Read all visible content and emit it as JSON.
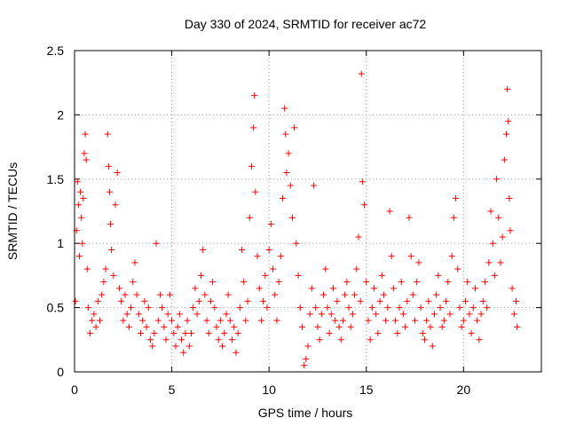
{
  "chart_data": {
    "type": "scatter",
    "title": "Day 330 of 2024, SRMTID for receiver ac72",
    "xlabel": "GPS time / hours",
    "ylabel": "SRMTID / TECUs",
    "xlim": [
      0,
      24
    ],
    "ylim": [
      0,
      2.5
    ],
    "xticks": [
      0,
      5,
      10,
      15,
      20
    ],
    "yticks": [
      0,
      0.5,
      1,
      1.5,
      2,
      2.5
    ],
    "xtick_labels": [
      "0",
      "5",
      "10",
      "15",
      "20"
    ],
    "ytick_labels": [
      "0",
      "0.5",
      "1",
      "1.5",
      "2",
      "2.5"
    ],
    "grid": true,
    "marker": "+",
    "color": "#ff0000",
    "series": [
      {
        "name": "SRMTID",
        "points": [
          [
            0.05,
            0.55
          ],
          [
            0.1,
            1.1
          ],
          [
            0.15,
            1.48
          ],
          [
            0.2,
            1.3
          ],
          [
            0.25,
            0.9
          ],
          [
            0.3,
            1.4
          ],
          [
            0.35,
            1.2
          ],
          [
            0.4,
            1.0
          ],
          [
            0.45,
            1.35
          ],
          [
            0.5,
            1.7
          ],
          [
            0.55,
            1.85
          ],
          [
            0.6,
            1.65
          ],
          [
            0.65,
            0.8
          ],
          [
            0.7,
            0.5
          ],
          [
            0.8,
            0.3
          ],
          [
            0.9,
            0.4
          ],
          [
            1.0,
            0.45
          ],
          [
            1.1,
            0.35
          ],
          [
            1.2,
            0.55
          ],
          [
            1.3,
            0.4
          ],
          [
            1.4,
            0.6
          ],
          [
            1.5,
            0.7
          ],
          [
            1.6,
            0.8
          ],
          [
            1.7,
            1.85
          ],
          [
            1.75,
            1.6
          ],
          [
            1.8,
            1.4
          ],
          [
            1.85,
            1.15
          ],
          [
            1.9,
            0.95
          ],
          [
            2.0,
            0.75
          ],
          [
            2.1,
            1.3
          ],
          [
            2.2,
            1.55
          ],
          [
            2.3,
            0.65
          ],
          [
            2.4,
            0.55
          ],
          [
            2.5,
            0.4
          ],
          [
            2.6,
            0.6
          ],
          [
            2.7,
            0.45
          ],
          [
            2.8,
            0.35
          ],
          [
            2.9,
            0.5
          ],
          [
            3.0,
            0.7
          ],
          [
            3.1,
            0.85
          ],
          [
            3.2,
            0.6
          ],
          [
            3.3,
            0.45
          ],
          [
            3.4,
            0.3
          ],
          [
            3.5,
            0.4
          ],
          [
            3.6,
            0.55
          ],
          [
            3.7,
            0.35
          ],
          [
            3.8,
            0.5
          ],
          [
            3.9,
            0.25
          ],
          [
            4.0,
            0.2
          ],
          [
            4.1,
            0.3
          ],
          [
            4.2,
            1.0
          ],
          [
            4.3,
            0.4
          ],
          [
            4.4,
            0.6
          ],
          [
            4.5,
            0.5
          ],
          [
            4.6,
            0.35
          ],
          [
            4.7,
            0.25
          ],
          [
            4.8,
            0.45
          ],
          [
            4.9,
            0.6
          ],
          [
            5.0,
            0.4
          ],
          [
            5.1,
            0.3
          ],
          [
            5.2,
            0.2
          ],
          [
            5.3,
            0.35
          ],
          [
            5.4,
            0.45
          ],
          [
            5.5,
            0.25
          ],
          [
            5.6,
            0.15
          ],
          [
            5.7,
            0.3
          ],
          [
            5.8,
            0.4
          ],
          [
            5.9,
            0.2
          ],
          [
            6.0,
            0.3
          ],
          [
            6.1,
            0.5
          ],
          [
            6.2,
            0.65
          ],
          [
            6.3,
            0.45
          ],
          [
            6.4,
            0.55
          ],
          [
            6.5,
            0.75
          ],
          [
            6.6,
            0.95
          ],
          [
            6.7,
            0.6
          ],
          [
            6.8,
            0.4
          ],
          [
            6.9,
            0.3
          ],
          [
            7.0,
            0.55
          ],
          [
            7.1,
            0.7
          ],
          [
            7.2,
            0.5
          ],
          [
            7.3,
            0.35
          ],
          [
            7.4,
            0.25
          ],
          [
            7.5,
            0.4
          ],
          [
            7.6,
            0.2
          ],
          [
            7.7,
            0.3
          ],
          [
            7.8,
            0.45
          ],
          [
            7.9,
            0.6
          ],
          [
            8.0,
            0.4
          ],
          [
            8.1,
            0.25
          ],
          [
            8.2,
            0.35
          ],
          [
            8.3,
            0.15
          ],
          [
            8.4,
            0.3
          ],
          [
            8.5,
            0.5
          ],
          [
            8.6,
            0.95
          ],
          [
            8.7,
            0.7
          ],
          [
            8.8,
            0.4
          ],
          [
            8.9,
            0.55
          ],
          [
            9.0,
            1.2
          ],
          [
            9.1,
            1.6
          ],
          [
            9.2,
            1.9
          ],
          [
            9.25,
            2.15
          ],
          [
            9.3,
            1.4
          ],
          [
            9.4,
            0.9
          ],
          [
            9.5,
            0.65
          ],
          [
            9.6,
            0.4
          ],
          [
            9.7,
            0.55
          ],
          [
            9.8,
            0.75
          ],
          [
            9.9,
            0.5
          ],
          [
            10.0,
            0.95
          ],
          [
            10.1,
            1.15
          ],
          [
            10.2,
            0.8
          ],
          [
            10.3,
            0.6
          ],
          [
            10.4,
            0.4
          ],
          [
            10.5,
            0.7
          ],
          [
            10.6,
            0.9
          ],
          [
            10.7,
            1.35
          ],
          [
            10.8,
            2.05
          ],
          [
            10.85,
            1.85
          ],
          [
            10.9,
            1.55
          ],
          [
            11.0,
            1.7
          ],
          [
            11.1,
            1.45
          ],
          [
            11.2,
            1.2
          ],
          [
            11.3,
            1.9
          ],
          [
            11.4,
            1.0
          ],
          [
            11.5,
            0.75
          ],
          [
            11.6,
            0.5
          ],
          [
            11.7,
            0.35
          ],
          [
            11.8,
            0.05
          ],
          [
            11.9,
            0.1
          ],
          [
            12.0,
            0.2
          ],
          [
            12.1,
            0.45
          ],
          [
            12.2,
            0.65
          ],
          [
            12.3,
            1.45
          ],
          [
            12.4,
            0.5
          ],
          [
            12.5,
            0.35
          ],
          [
            12.6,
            0.25
          ],
          [
            12.7,
            0.45
          ],
          [
            12.8,
            0.6
          ],
          [
            12.9,
            0.8
          ],
          [
            13.0,
            0.5
          ],
          [
            13.1,
            0.3
          ],
          [
            13.2,
            0.45
          ],
          [
            13.3,
            0.65
          ],
          [
            13.4,
            0.4
          ],
          [
            13.5,
            0.55
          ],
          [
            13.6,
            0.35
          ],
          [
            13.7,
            0.25
          ],
          [
            13.8,
            0.4
          ],
          [
            13.9,
            0.6
          ],
          [
            14.0,
            0.7
          ],
          [
            14.1,
            0.5
          ],
          [
            14.2,
            0.35
          ],
          [
            14.3,
            0.45
          ],
          [
            14.4,
            0.6
          ],
          [
            14.5,
            0.8
          ],
          [
            14.6,
            1.05
          ],
          [
            14.7,
            0.55
          ],
          [
            14.75,
            2.32
          ],
          [
            14.8,
            1.48
          ],
          [
            14.9,
            1.3
          ],
          [
            15.0,
            0.7
          ],
          [
            15.1,
            0.4
          ],
          [
            15.2,
            0.25
          ],
          [
            15.3,
            0.5
          ],
          [
            15.4,
            0.65
          ],
          [
            15.5,
            0.45
          ],
          [
            15.6,
            0.3
          ],
          [
            15.7,
            0.55
          ],
          [
            15.8,
            0.75
          ],
          [
            15.9,
            0.6
          ],
          [
            16.0,
            0.4
          ],
          [
            16.1,
            0.5
          ],
          [
            16.2,
            1.25
          ],
          [
            16.3,
            0.9
          ],
          [
            16.4,
            0.65
          ],
          [
            16.5,
            0.4
          ],
          [
            16.6,
            0.3
          ],
          [
            16.7,
            0.5
          ],
          [
            16.8,
            0.7
          ],
          [
            16.9,
            0.45
          ],
          [
            17.0,
            0.35
          ],
          [
            17.1,
            0.55
          ],
          [
            17.2,
            1.2
          ],
          [
            17.3,
            0.9
          ],
          [
            17.4,
            0.6
          ],
          [
            17.5,
            0.4
          ],
          [
            17.6,
            0.7
          ],
          [
            17.7,
            0.85
          ],
          [
            17.8,
            0.5
          ],
          [
            17.9,
            0.3
          ],
          [
            18.0,
            0.25
          ],
          [
            18.1,
            0.4
          ],
          [
            18.2,
            0.55
          ],
          [
            18.3,
            0.35
          ],
          [
            18.4,
            0.2
          ],
          [
            18.5,
            0.45
          ],
          [
            18.6,
            0.6
          ],
          [
            18.7,
            0.75
          ],
          [
            18.8,
            0.5
          ],
          [
            18.9,
            0.35
          ],
          [
            19.0,
            0.4
          ],
          [
            19.1,
            0.55
          ],
          [
            19.2,
            0.7
          ],
          [
            19.3,
            0.45
          ],
          [
            19.4,
            0.9
          ],
          [
            19.5,
            1.2
          ],
          [
            19.6,
            1.35
          ],
          [
            19.7,
            0.8
          ],
          [
            19.8,
            0.5
          ],
          [
            19.9,
            0.35
          ],
          [
            20.0,
            0.4
          ],
          [
            20.1,
            0.55
          ],
          [
            20.2,
            0.7
          ],
          [
            20.3,
            0.45
          ],
          [
            20.4,
            0.3
          ],
          [
            20.5,
            0.5
          ],
          [
            20.6,
            0.65
          ],
          [
            20.7,
            0.4
          ],
          [
            20.8,
            0.25
          ],
          [
            20.9,
            0.45
          ],
          [
            21.0,
            0.55
          ],
          [
            21.1,
            0.7
          ],
          [
            21.2,
            0.5
          ],
          [
            21.3,
            0.85
          ],
          [
            21.4,
            1.25
          ],
          [
            21.5,
            1.0
          ],
          [
            21.6,
            0.75
          ],
          [
            21.7,
            1.5
          ],
          [
            21.8,
            1.2
          ],
          [
            21.9,
            0.85
          ],
          [
            22.0,
            1.05
          ],
          [
            22.1,
            1.65
          ],
          [
            22.2,
            1.85
          ],
          [
            22.25,
            2.2
          ],
          [
            22.3,
            1.95
          ],
          [
            22.35,
            1.35
          ],
          [
            22.4,
            1.1
          ],
          [
            22.5,
            0.65
          ],
          [
            22.6,
            0.45
          ],
          [
            22.7,
            0.55
          ],
          [
            22.75,
            0.35
          ]
        ]
      }
    ]
  }
}
